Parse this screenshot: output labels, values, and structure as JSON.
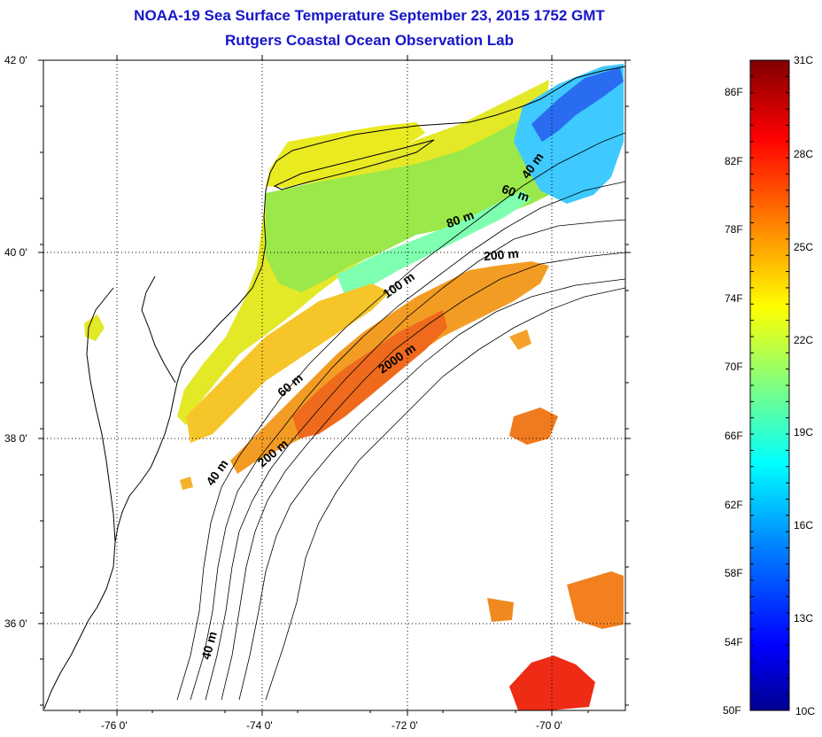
{
  "title": {
    "line1": "NOAA-19 Sea Surface Temperature September 23, 2015 1752 GMT",
    "line2": "Rutgers Coastal Ocean Observation Lab"
  },
  "axes": {
    "lat_labels": [
      "42 0'",
      "40 0'",
      "38 0'",
      "36 0'"
    ],
    "lon_labels": [
      "-76 0'",
      "-74 0'",
      "-72 0'",
      "-70 0'"
    ]
  },
  "isobaths": {
    "labels": [
      "40 m",
      "60 m",
      "80 m",
      "200 m",
      "100 m",
      "2000 m",
      "60 m",
      "200 m",
      "40 m",
      "40 m"
    ]
  },
  "colorbar": {
    "fahrenheit": [
      "86F",
      "82F",
      "78F",
      "74F",
      "70F",
      "66F",
      "62F",
      "58F",
      "54F",
      "50F"
    ],
    "celsius": [
      "31C",
      "28C",
      "25C",
      "22C",
      "19C",
      "16C",
      "13C",
      "10C"
    ],
    "colors": [
      "#00008f",
      "#0000ff",
      "#0080ff",
      "#00ffff",
      "#80ff80",
      "#ffff00",
      "#ff8000",
      "#ff0000",
      "#800000"
    ]
  },
  "palette": {
    "title": "#1616c8",
    "cool": "#3fb6ff",
    "mint": "#7fffa0",
    "green": "#9be84a",
    "yellow": "#e6ee22",
    "orange": "#f39c24",
    "red": "#ef3a14"
  }
}
